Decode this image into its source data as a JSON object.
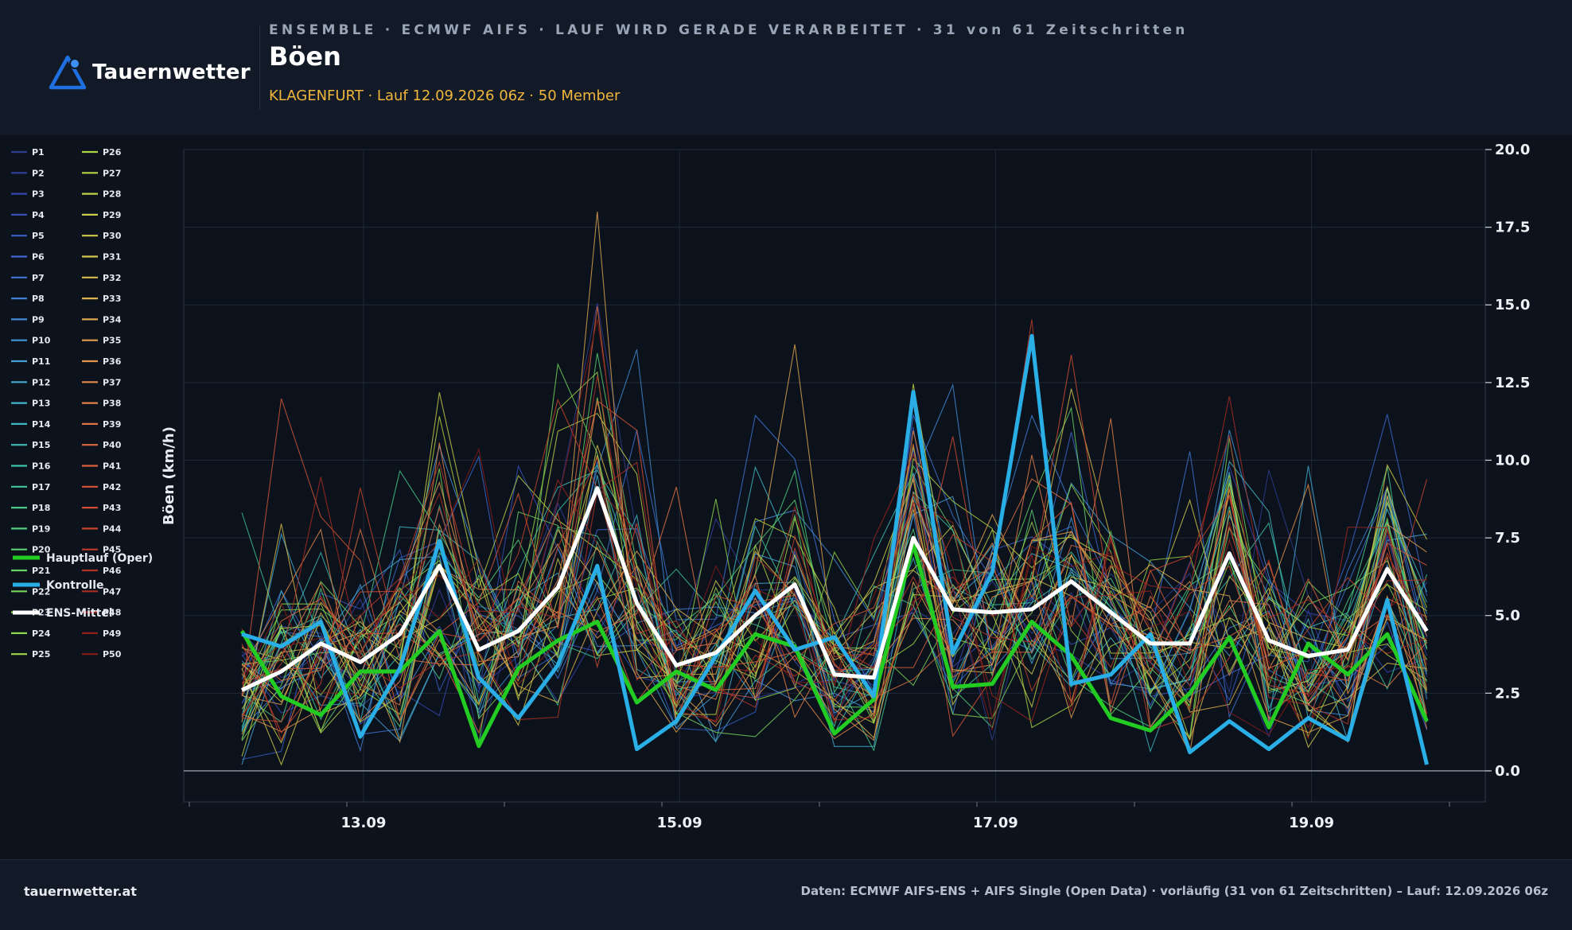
{
  "brand": {
    "name": "Tauernwetter",
    "icon": "triangle-mountain-icon",
    "accent": "#1f6fe0"
  },
  "header": {
    "kicker": "ENSEMBLE · ECMWF AIFS · LAUF WIRD GERADE VERARBEITET · 31 von 61 Zeitschritten",
    "title": "Böen",
    "subtitle": "KLAGENFURT · Lauf 12.09.2026 06z · 50 Member"
  },
  "footer": {
    "left": "tauernwetter.at",
    "right": "Daten: ECMWF AIFS-ENS + AIFS Single (Open Data) · vorläufig (31 von 61 Zeitschritten) – Lauf: 12.09.2026 06z"
  },
  "chart_data": {
    "type": "line",
    "ylabel": "Böen (km/h)",
    "ylim": [
      -1,
      20
    ],
    "yticks": [
      0.0,
      2.5,
      5.0,
      7.5,
      10.0,
      12.5,
      15.0,
      17.5,
      20.0
    ],
    "ytick_labels": [
      "0.0",
      "2.5",
      "5.0",
      "7.5",
      "10.0",
      "12.5",
      "15.0",
      "17.5",
      "20.0"
    ],
    "y_axis_side": "right",
    "x_dates": [
      "12.09 06z",
      "12.09 12z",
      "12.09 18z",
      "13.09 00z",
      "13.09 06z",
      "13.09 12z",
      "13.09 18z",
      "14.09 00z",
      "14.09 06z",
      "14.09 12z",
      "14.09 18z",
      "15.09 00z",
      "15.09 06z",
      "15.09 12z",
      "15.09 18z",
      "16.09 00z",
      "16.09 06z",
      "16.09 12z",
      "16.09 18z",
      "17.09 00z",
      "17.09 06z",
      "17.09 12z",
      "17.09 18z",
      "18.09 00z",
      "18.09 06z",
      "18.09 12z",
      "18.09 18z",
      "19.09 00z",
      "19.09 06z",
      "19.09 12z",
      "19.09 18z"
    ],
    "x_tick_labels": [
      "13.09",
      "15.09",
      "17.09",
      "19.09"
    ],
    "grid": true,
    "legend_placement": "left",
    "series": [
      {
        "name": "Hauptlauf (Oper)",
        "color": "#22cc22",
        "values": [
          4.5,
          2.4,
          1.8,
          3.2,
          3.2,
          4.5,
          0.8,
          3.3,
          4.2,
          4.8,
          2.2,
          3.2,
          2.6,
          4.4,
          4.0,
          1.2,
          2.3,
          7.3,
          2.7,
          2.8,
          4.8,
          3.7,
          1.7,
          1.3,
          2.5,
          4.3,
          1.4,
          4.1,
          3.1,
          4.4,
          1.6
        ]
      },
      {
        "name": "Kontrolle",
        "color": "#29aee6",
        "values": [
          4.4,
          4.0,
          4.8,
          1.1,
          3.3,
          7.4,
          3.0,
          1.7,
          3.4,
          6.6,
          0.7,
          1.6,
          3.7,
          5.8,
          3.9,
          4.3,
          2.4,
          12.2,
          3.8,
          6.4,
          14.0,
          2.8,
          3.1,
          4.4,
          0.6,
          1.6,
          0.7,
          1.7,
          1.0,
          5.5,
          0.2
        ]
      },
      {
        "name": "ENS-Mittel",
        "color": "#ffffff",
        "values": [
          2.6,
          3.2,
          4.1,
          3.5,
          4.4,
          6.6,
          3.9,
          4.5,
          5.9,
          9.1,
          5.4,
          3.4,
          3.8,
          5.0,
          6.0,
          3.1,
          3.0,
          7.5,
          5.2,
          5.1,
          5.2,
          6.1,
          5.1,
          4.1,
          4.1,
          7.0,
          4.2,
          3.7,
          3.9,
          6.5,
          4.5
        ]
      }
    ],
    "members": [
      {
        "name": "P1",
        "color": "#2e3d8f"
      },
      {
        "name": "P2",
        "color": "#3140a0"
      },
      {
        "name": "P3",
        "color": "#3446ad"
      },
      {
        "name": "P4",
        "color": "#3650b8"
      },
      {
        "name": "P5",
        "color": "#395cc4"
      },
      {
        "name": "P6",
        "color": "#3c68cc"
      },
      {
        "name": "P7",
        "color": "#3f74d2"
      },
      {
        "name": "P8",
        "color": "#4180d6"
      },
      {
        "name": "P9",
        "color": "#438bd8"
      },
      {
        "name": "P10",
        "color": "#4596d8"
      },
      {
        "name": "P11",
        "color": "#45a0d6"
      },
      {
        "name": "P12",
        "color": "#45aad2"
      },
      {
        "name": "P13",
        "color": "#43b2cc"
      },
      {
        "name": "P14",
        "color": "#40b8c2"
      },
      {
        "name": "P15",
        "color": "#3ebdb6"
      },
      {
        "name": "P16",
        "color": "#3dc2a8"
      },
      {
        "name": "P17",
        "color": "#3fc69a"
      },
      {
        "name": "P18",
        "color": "#45ca8c"
      },
      {
        "name": "P19",
        "color": "#4ecd7e"
      },
      {
        "name": "P20",
        "color": "#5ad070"
      },
      {
        "name": "P21",
        "color": "#66d264"
      },
      {
        "name": "P22",
        "color": "#74d45a"
      },
      {
        "name": "P23",
        "color": "#82d552"
      },
      {
        "name": "P24",
        "color": "#90d64c"
      },
      {
        "name": "P25",
        "color": "#9ed648"
      },
      {
        "name": "P26",
        "color": "#aad646"
      },
      {
        "name": "P27",
        "color": "#b6d546"
      },
      {
        "name": "P28",
        "color": "#c0d346"
      },
      {
        "name": "P29",
        "color": "#c9cf48"
      },
      {
        "name": "P30",
        "color": "#d0ca4a"
      },
      {
        "name": "P31",
        "color": "#d6c34c"
      },
      {
        "name": "P32",
        "color": "#dbbb4e"
      },
      {
        "name": "P33",
        "color": "#dfb24f"
      },
      {
        "name": "P34",
        "color": "#e2a84f"
      },
      {
        "name": "P35",
        "color": "#e49e4e"
      },
      {
        "name": "P36",
        "color": "#e5944c"
      },
      {
        "name": "P37",
        "color": "#e5894a"
      },
      {
        "name": "P38",
        "color": "#e47f47"
      },
      {
        "name": "P39",
        "color": "#e27443"
      },
      {
        "name": "P40",
        "color": "#df6a3f"
      },
      {
        "name": "P41",
        "color": "#db603b"
      },
      {
        "name": "P42",
        "color": "#d65636"
      },
      {
        "name": "P43",
        "color": "#cf4c32"
      },
      {
        "name": "P44",
        "color": "#c7432d"
      },
      {
        "name": "P45",
        "color": "#be3b29"
      },
      {
        "name": "P46",
        "color": "#b43325"
      },
      {
        "name": "P47",
        "color": "#a92c21"
      },
      {
        "name": "P48",
        "color": "#9e261d"
      },
      {
        "name": "P49",
        "color": "#92201a"
      },
      {
        "name": "P50",
        "color": "#861b17"
      }
    ]
  }
}
